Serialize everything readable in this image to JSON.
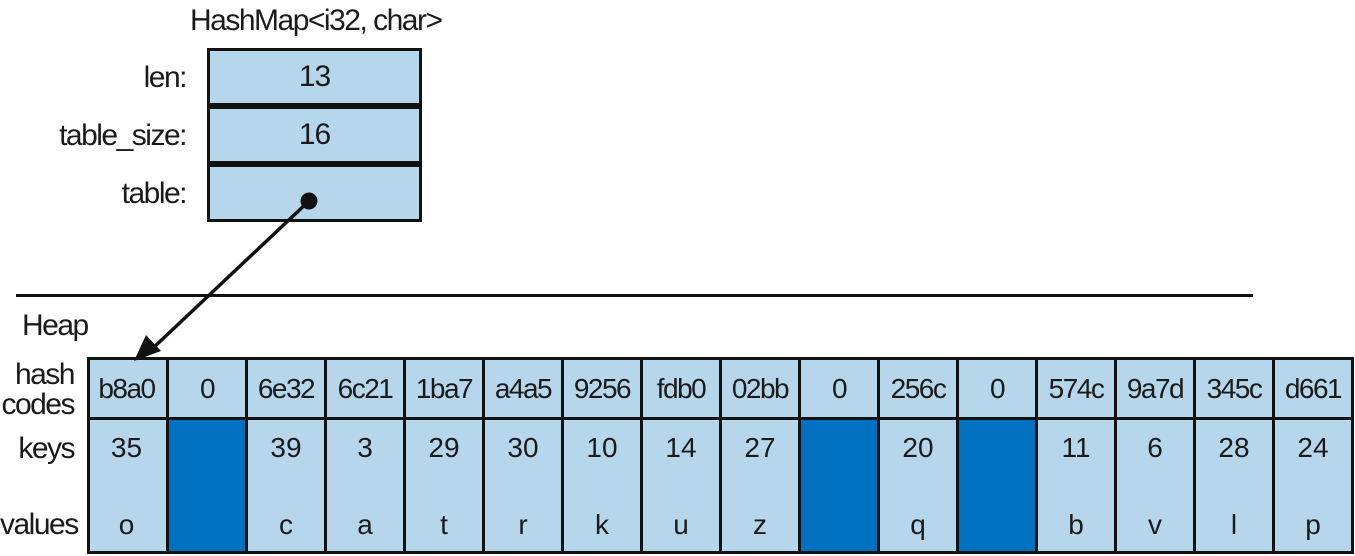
{
  "struct": {
    "title": "HashMap<i32, char>",
    "fields": [
      {
        "label": "len:",
        "value": "13"
      },
      {
        "label": "table_size:",
        "value": "16"
      },
      {
        "label": "table:",
        "value": ""
      }
    ]
  },
  "heap": {
    "label": "Heap",
    "row_labels": {
      "hash": "hash\ncodes",
      "keys": "keys",
      "values": "values"
    },
    "entries": [
      {
        "hash": "b8a0",
        "key": "35",
        "value": "o",
        "empty": false
      },
      {
        "hash": "0",
        "key": "",
        "value": "",
        "empty": true
      },
      {
        "hash": "6e32",
        "key": "39",
        "value": "c",
        "empty": false
      },
      {
        "hash": "6c21",
        "key": "3",
        "value": "a",
        "empty": false
      },
      {
        "hash": "1ba7",
        "key": "29",
        "value": "t",
        "empty": false
      },
      {
        "hash": "a4a5",
        "key": "30",
        "value": "r",
        "empty": false
      },
      {
        "hash": "9256",
        "key": "10",
        "value": "k",
        "empty": false
      },
      {
        "hash": "fdb0",
        "key": "14",
        "value": "u",
        "empty": false
      },
      {
        "hash": "02bb",
        "key": "27",
        "value": "z",
        "empty": false
      },
      {
        "hash": "0",
        "key": "",
        "value": "",
        "empty": true
      },
      {
        "hash": "256c",
        "key": "20",
        "value": "q",
        "empty": false
      },
      {
        "hash": "0",
        "key": "",
        "value": "",
        "empty": true
      },
      {
        "hash": "574c",
        "key": "11",
        "value": "b",
        "empty": false
      },
      {
        "hash": "9a7d",
        "key": "6",
        "value": "v",
        "empty": false
      },
      {
        "hash": "345c",
        "key": "28",
        "value": "l",
        "empty": false
      },
      {
        "hash": "d661",
        "key": "24",
        "value": "p",
        "empty": false
      }
    ]
  },
  "colors": {
    "cell_fill": "#b6d6ec",
    "empty_fill": "#0070c0",
    "stroke": "#111111"
  }
}
